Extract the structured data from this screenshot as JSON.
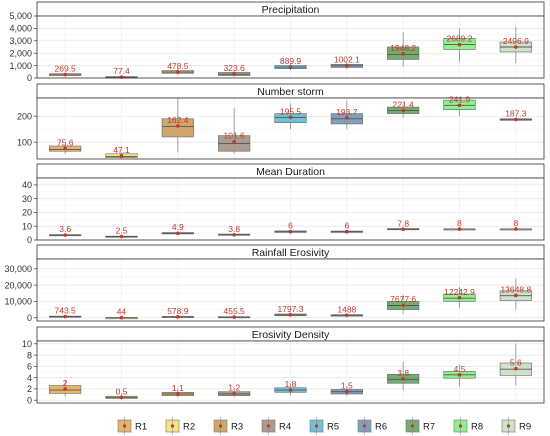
{
  "chart_data": {
    "type": "box",
    "categories": [
      "R1",
      "R2",
      "R3",
      "R4",
      "R5",
      "R6",
      "R7",
      "R8",
      "R9"
    ],
    "colors": [
      "#E8A64F",
      "#F3DF6B",
      "#C99755",
      "#9E8B7C",
      "#58B5CF",
      "#6D8FAF",
      "#5B9E58",
      "#7DEC7E",
      "#C5DCC0"
    ],
    "mean_marker_color": "#C0392B",
    "legend": {
      "position": "bottom",
      "entries": [
        "R1",
        "R2",
        "R3",
        "R4",
        "R5",
        "R6",
        "R7",
        "R8",
        "R9"
      ]
    },
    "grid": true,
    "panels": [
      {
        "title": "Precipitation",
        "ylim": [
          0,
          5000
        ],
        "yticks": [
          0,
          1000,
          2000,
          3000,
          4000,
          5000
        ],
        "ytick_labels": [
          "0",
          "1,000",
          "2,000",
          "3,000",
          "4,000",
          "5,000"
        ],
        "means": [
          269.5,
          77.4,
          478.5,
          323.6,
          889.9,
          1002.1,
          1948.2,
          2689.2,
          2496.9
        ],
        "mean_labels": [
          "269.5",
          "77.4",
          "478.5",
          "323.6",
          "889.9",
          "1002.1",
          "1948.2",
          "2689.2",
          "2496.9"
        ],
        "boxes": [
          {
            "min": 150,
            "q1": 200,
            "median": 260,
            "q3": 350,
            "max": 450
          },
          {
            "min": 20,
            "q1": 50,
            "median": 75,
            "q3": 110,
            "max": 170
          },
          {
            "min": 250,
            "q1": 380,
            "median": 480,
            "q3": 600,
            "max": 750
          },
          {
            "min": 100,
            "q1": 200,
            "median": 300,
            "q3": 450,
            "max": 650
          },
          {
            "min": 600,
            "q1": 750,
            "median": 880,
            "q3": 1000,
            "max": 1150
          },
          {
            "min": 700,
            "q1": 850,
            "median": 980,
            "q3": 1100,
            "max": 1250
          },
          {
            "min": 900,
            "q1": 1500,
            "median": 1900,
            "q3": 2500,
            "max": 3700
          },
          {
            "min": 1300,
            "q1": 2300,
            "median": 2700,
            "q3": 3200,
            "max": 4000
          },
          {
            "min": 1200,
            "q1": 2100,
            "median": 2500,
            "q3": 2900,
            "max": 4100
          }
        ]
      },
      {
        "title": "Number storm",
        "ylim": [
          35,
          270
        ],
        "yticks": [
          100,
          200
        ],
        "ytick_labels": [
          "100",
          "200"
        ],
        "means": [
          75.6,
          47.1,
          162.4,
          101.6,
          195.5,
          193.7,
          221.4,
          241.9,
          187.3
        ],
        "mean_labels": [
          "75.6",
          "47.1",
          "162.4",
          "101.6",
          "195.5",
          "193.7",
          "221.4",
          "241.9",
          "187.3"
        ],
        "boxes": [
          {
            "min": 55,
            "q1": 65,
            "median": 72,
            "q3": 85,
            "max": 90
          },
          {
            "min": 38,
            "q1": 40,
            "median": 45,
            "q3": 55,
            "max": 60
          },
          {
            "min": 60,
            "q1": 120,
            "median": 160,
            "q3": 190,
            "max": 270
          },
          {
            "min": 55,
            "q1": 65,
            "median": 95,
            "q3": 125,
            "max": 230
          },
          {
            "min": 150,
            "q1": 175,
            "median": 195,
            "q3": 210,
            "max": 250
          },
          {
            "min": 150,
            "q1": 170,
            "median": 190,
            "q3": 210,
            "max": 260
          },
          {
            "min": 195,
            "q1": 210,
            "median": 222,
            "q3": 235,
            "max": 245
          },
          {
            "min": 200,
            "q1": 225,
            "median": 242,
            "q3": 262,
            "max": 268
          },
          {
            "min": 181,
            "q1": 184,
            "median": 187,
            "q3": 190,
            "max": 192
          }
        ]
      },
      {
        "title": "Mean Duration",
        "ylim": [
          0,
          45
        ],
        "yticks": [
          0,
          10,
          20,
          30,
          40
        ],
        "ytick_labels": [
          "0",
          "10",
          "20",
          "30",
          "40"
        ],
        "means": [
          3.6,
          2.5,
          4.9,
          3.8,
          6,
          6,
          7.8,
          8,
          8
        ],
        "mean_labels": [
          "3.6",
          "2.5",
          "4.9",
          "3.8",
          "6",
          "6",
          "7.8",
          "8",
          "8"
        ],
        "boxes": [
          {
            "min": 3.0,
            "q1": 3.3,
            "median": 3.6,
            "q3": 3.9,
            "max": 4.3
          },
          {
            "min": 2.0,
            "q1": 2.2,
            "median": 2.5,
            "q3": 2.8,
            "max": 3.1
          },
          {
            "min": 3.8,
            "q1": 4.4,
            "median": 4.9,
            "q3": 5.4,
            "max": 6.0
          },
          {
            "min": 3.0,
            "q1": 3.4,
            "median": 3.8,
            "q3": 4.3,
            "max": 4.8
          },
          {
            "min": 5.0,
            "q1": 5.5,
            "median": 6.0,
            "q3": 6.6,
            "max": 7.2
          },
          {
            "min": 5.0,
            "q1": 5.5,
            "median": 6.0,
            "q3": 6.5,
            "max": 7.0
          },
          {
            "min": 7.0,
            "q1": 7.4,
            "median": 7.8,
            "q3": 8.3,
            "max": 8.7
          },
          {
            "min": 7.8,
            "q1": 7.9,
            "median": 8.0,
            "q3": 8.1,
            "max": 8.2
          },
          {
            "min": 7.8,
            "q1": 7.9,
            "median": 8.0,
            "q3": 8.1,
            "max": 8.2
          }
        ]
      },
      {
        "title": "Rainfall Erosivity",
        "ylim": [
          -2000,
          36000
        ],
        "yticks": [
          0,
          10000,
          20000,
          30000
        ],
        "ytick_labels": [
          "0",
          "10,000",
          "20,000",
          "30,000"
        ],
        "means": [
          743.5,
          44,
          578.9,
          455.5,
          1797.3,
          1488,
          7677.6,
          12242.9,
          13648.8
        ],
        "mean_labels": [
          "743.5",
          "44",
          "578.9",
          "455.5",
          "1797.3",
          "1488",
          "7677.6",
          "12242.9",
          "13648.8"
        ],
        "boxes": [
          {
            "min": 200,
            "q1": 400,
            "median": 700,
            "q3": 1000,
            "max": 1500
          },
          {
            "min": 0,
            "q1": 20,
            "median": 40,
            "q3": 70,
            "max": 110
          },
          {
            "min": 150,
            "q1": 350,
            "median": 550,
            "q3": 800,
            "max": 1300
          },
          {
            "min": 100,
            "q1": 250,
            "median": 420,
            "q3": 650,
            "max": 1100
          },
          {
            "min": 600,
            "q1": 1200,
            "median": 1700,
            "q3": 2300,
            "max": 3200
          },
          {
            "min": 500,
            "q1": 1000,
            "median": 1400,
            "q3": 1900,
            "max": 2700
          },
          {
            "min": 2500,
            "q1": 5000,
            "median": 7500,
            "q3": 10000,
            "max": 14000
          },
          {
            "min": 6000,
            "q1": 10000,
            "median": 12000,
            "q3": 14500,
            "max": 19000
          },
          {
            "min": 5000,
            "q1": 10500,
            "median": 13500,
            "q3": 16500,
            "max": 24000
          }
        ]
      },
      {
        "title": "Erosivity Density",
        "ylim": [
          -0.5,
          10.5
        ],
        "yticks": [
          0,
          2,
          4,
          6,
          8,
          10
        ],
        "ytick_labels": [
          "0",
          "2",
          "4",
          "6",
          "8",
          "10"
        ],
        "means": [
          2,
          0.5,
          1.1,
          1.2,
          1.8,
          1.5,
          3.8,
          4.5,
          5.6
        ],
        "mean_labels": [
          "2",
          "0.5",
          "1.1",
          "1.2",
          "1.8",
          "1.5",
          "3.8",
          "4.5",
          "5.6"
        ],
        "boxes": [
          {
            "min": 0.6,
            "q1": 1.2,
            "median": 1.8,
            "q3": 2.6,
            "max": 3.4
          },
          {
            "min": 0.1,
            "q1": 0.3,
            "median": 0.5,
            "q3": 0.7,
            "max": 1.0
          },
          {
            "min": 0.5,
            "q1": 0.8,
            "median": 1.1,
            "q3": 1.4,
            "max": 2.0
          },
          {
            "min": 0.5,
            "q1": 0.8,
            "median": 1.1,
            "q3": 1.5,
            "max": 2.2
          },
          {
            "min": 0.9,
            "q1": 1.4,
            "median": 1.8,
            "q3": 2.2,
            "max": 2.9
          },
          {
            "min": 0.7,
            "q1": 1.1,
            "median": 1.5,
            "q3": 1.9,
            "max": 2.5
          },
          {
            "min": 1.8,
            "q1": 3.0,
            "median": 3.7,
            "q3": 4.6,
            "max": 6.8
          },
          {
            "min": 2.4,
            "q1": 3.9,
            "median": 4.5,
            "q3": 5.1,
            "max": 6.3
          },
          {
            "min": 2.6,
            "q1": 4.4,
            "median": 5.5,
            "q3": 6.6,
            "max": 10.0
          }
        ]
      }
    ]
  }
}
